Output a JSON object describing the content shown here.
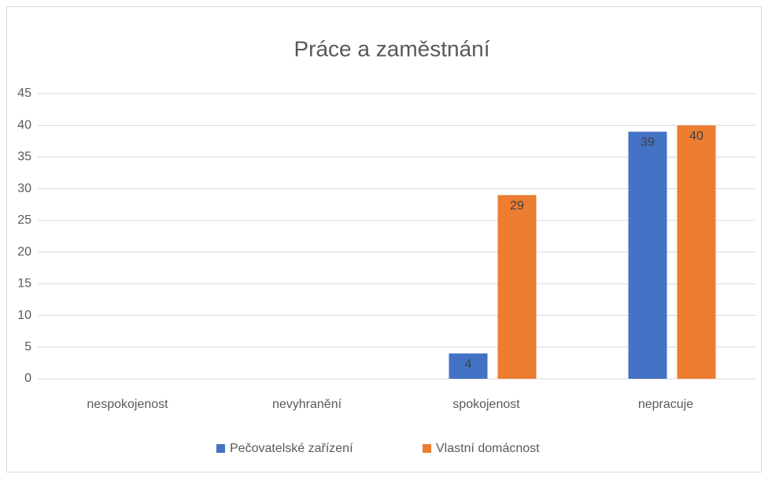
{
  "chart_data": {
    "type": "bar",
    "title": "Práce a zaměstnání",
    "categories": [
      "nespokojenost",
      "nevyhranění",
      "spokojenost",
      "nepracuje"
    ],
    "series": [
      {
        "name": "Pečovatelské zařízení",
        "color": "#4472c4",
        "values": [
          null,
          null,
          4,
          39
        ]
      },
      {
        "name": "Vlastní domácnost",
        "color": "#ed7d31",
        "values": [
          null,
          null,
          29,
          40
        ]
      }
    ],
    "ylim": [
      0,
      45
    ],
    "yticks": [
      0,
      5,
      10,
      15,
      20,
      25,
      30,
      35,
      40,
      45
    ],
    "grid": true,
    "legend": "bottom"
  }
}
